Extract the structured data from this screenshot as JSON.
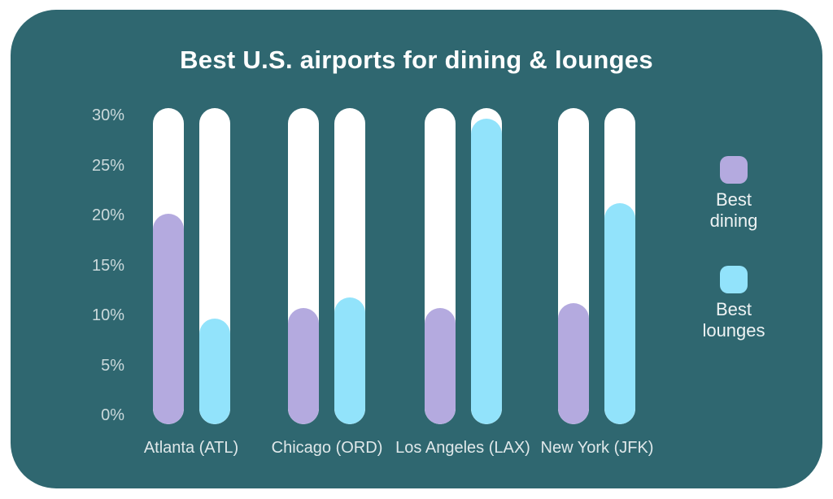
{
  "card": {
    "background_color": "#2f6770",
    "page_background_color": "#ffffff",
    "bar_track_color": "#ffffff"
  },
  "chart_data": {
    "type": "bar",
    "title": "Best U.S. airports for dining & lounges",
    "categories": [
      "Atlanta (ATL)",
      "Chicago (ORD)",
      "Los Angeles (LAX)",
      "New York (JFK)"
    ],
    "series": [
      {
        "name": "Best dining",
        "color": "#b4aadf",
        "values": [
          20,
          11,
          11,
          11.5
        ]
      },
      {
        "name": "Best lounges",
        "color": "#92e3fb",
        "values": [
          10,
          12,
          29,
          21
        ]
      }
    ],
    "xlabel": "",
    "ylabel": "",
    "ylim": [
      0,
      30
    ],
    "yticks": [
      "30%",
      "25%",
      "20%",
      "15%",
      "10%",
      "5%",
      "0%"
    ],
    "ytick_values": [
      30,
      25,
      20,
      15,
      10,
      5,
      0
    ],
    "grid": false,
    "legend_position": "right",
    "bar_style": "rounded-pill-on-white-track"
  },
  "legend": {
    "items": [
      {
        "label": "Best dining",
        "color": "#b4aadf"
      },
      {
        "label": "Best lounges",
        "color": "#92e3fb"
      }
    ]
  }
}
